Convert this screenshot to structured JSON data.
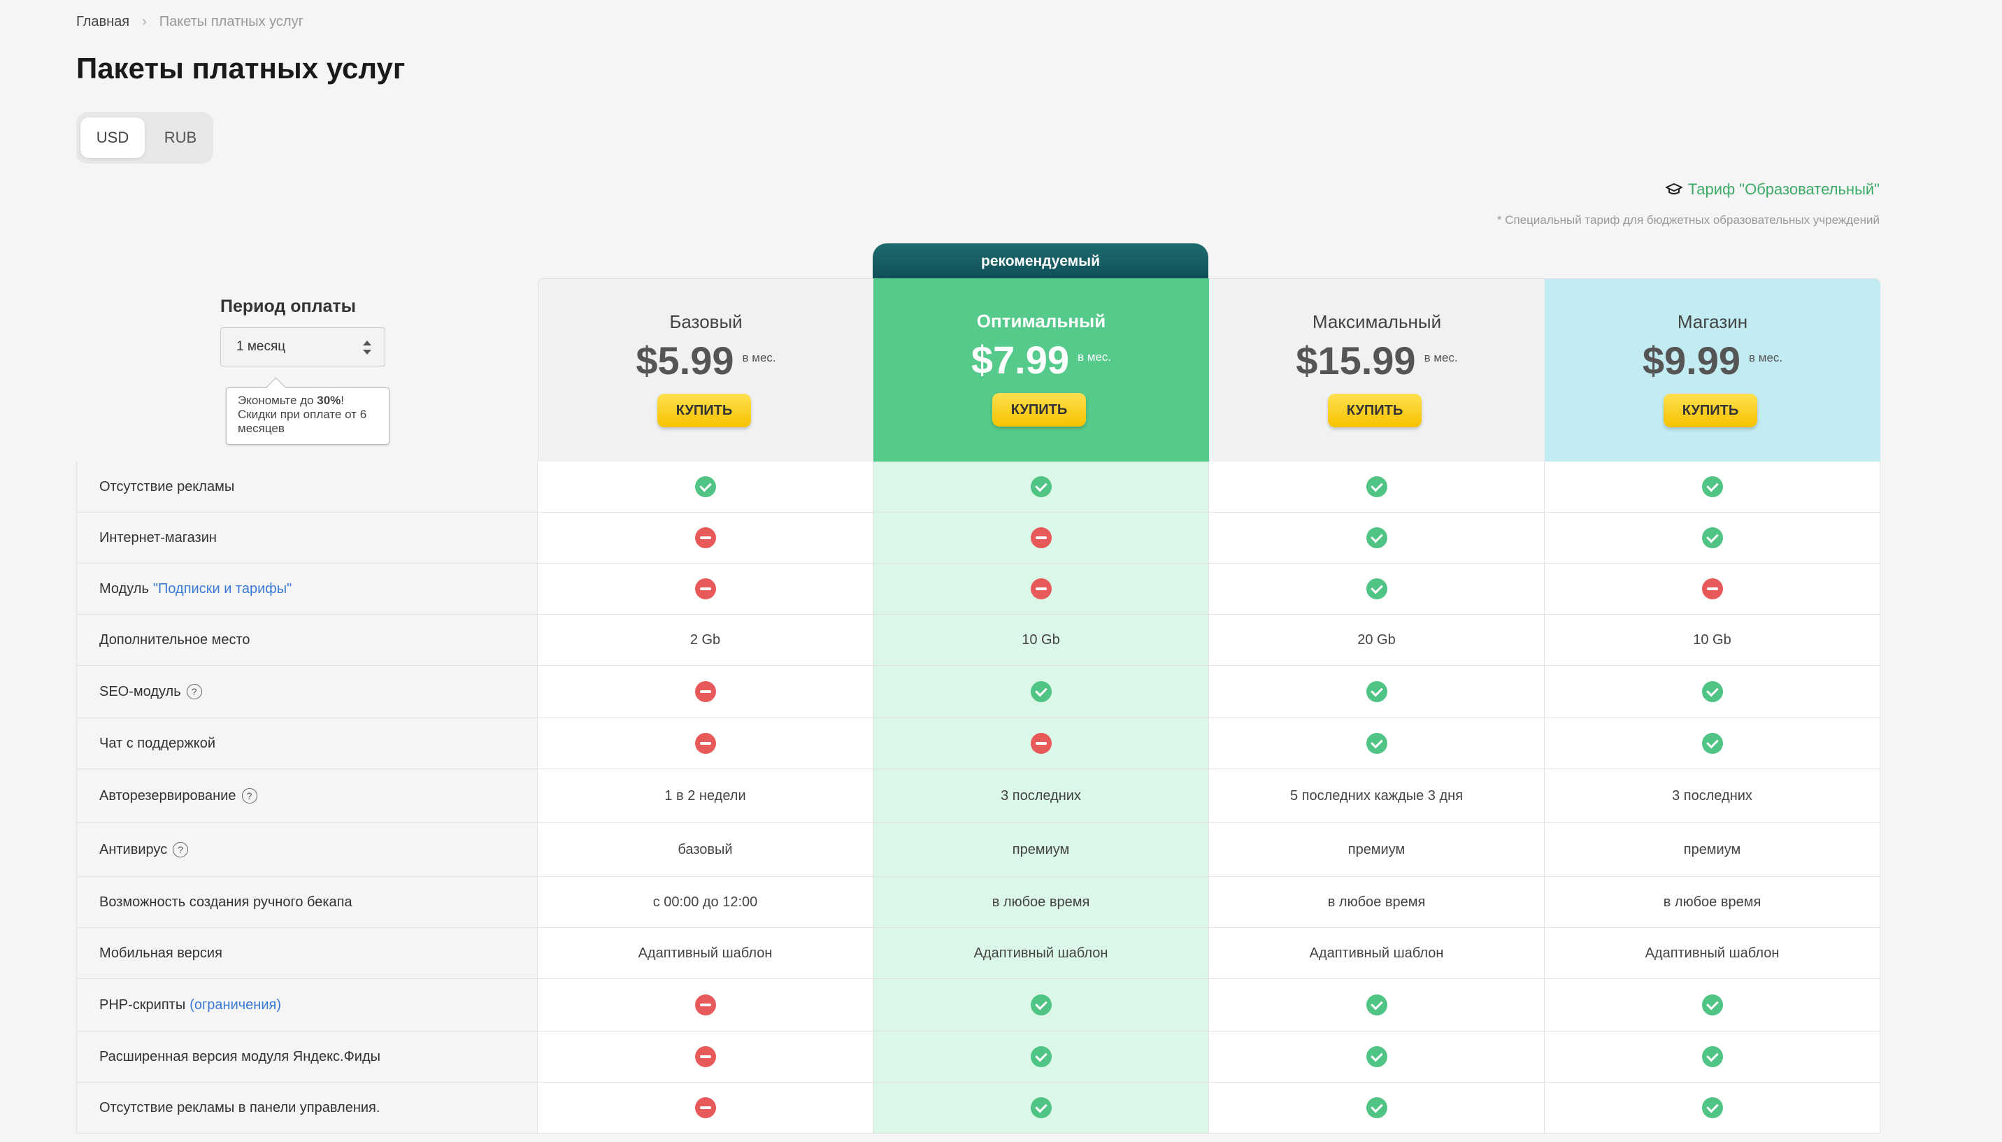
{
  "breadcrumb": {
    "home": "Главная",
    "current": "Пакеты платных услуг"
  },
  "title": "Пакеты платных услуг",
  "currency": {
    "usd": "USD",
    "rub": "RUB",
    "selected": "USD"
  },
  "edu": {
    "link": "Тариф \"Образовательный\"",
    "note": "* Специальный тариф для бюджетных образовательных учреждений"
  },
  "recommended_badge": "рекомендуемый",
  "period": {
    "label": "Период оплаты",
    "selected": "1 месяц",
    "tip_pre": "Экономьте до ",
    "tip_bold": "30%",
    "tip_post": "!",
    "tip_line2": "Скидки при оплате от 6 месяцев"
  },
  "plans": [
    {
      "name": "Базовый",
      "price": "$5.99",
      "per": "в мес.",
      "buy": "КУПИТЬ"
    },
    {
      "name": "Оптимальный",
      "price": "$7.99",
      "per": "в мес.",
      "buy": "КУПИТЬ"
    },
    {
      "name": "Максимальный",
      "price": "$15.99",
      "per": "в мес.",
      "buy": "КУПИТЬ"
    },
    {
      "name": "Магазин",
      "price": "$9.99",
      "per": "в мес.",
      "buy": "КУПИТЬ"
    }
  ],
  "features": [
    {
      "label": "Отсутствие рекламы",
      "values": [
        "yes",
        "yes",
        "yes",
        "yes"
      ]
    },
    {
      "label": "Интернет-магазин",
      "values": [
        "no",
        "no",
        "yes",
        "yes"
      ]
    },
    {
      "label": "Модуль",
      "link": "\"Подписки и тарифы\"",
      "values": [
        "no",
        "no",
        "yes",
        "no"
      ]
    },
    {
      "label": "Дополнительное место",
      "values": [
        "2 Gb",
        "10 Gb",
        "20 Gb",
        "10 Gb"
      ]
    },
    {
      "label": "SEO-модуль",
      "help": "?",
      "values": [
        "no",
        "yes",
        "yes",
        "yes"
      ]
    },
    {
      "label": "Чат с поддержкой",
      "values": [
        "no",
        "no",
        "yes",
        "yes"
      ]
    },
    {
      "label": "Авторезервирование",
      "help": "?",
      "values": [
        "1 в 2 недели",
        "3 последних",
        "5 последних каждые 3 дня",
        "3 последних"
      ]
    },
    {
      "label": "Антивирус",
      "help": "?",
      "values": [
        "базовый",
        "премиум",
        "премиум",
        "премиум"
      ]
    },
    {
      "label": "Возможность создания ручного бекапа",
      "values": [
        "с 00:00 до 12:00",
        "в любое время",
        "в любое время",
        "в любое время"
      ]
    },
    {
      "label": "Мобильная версия",
      "values": [
        "Адаптивный шаблон",
        "Адаптивный шаблон",
        "Адаптивный шаблон",
        "Адаптивный шаблон"
      ]
    },
    {
      "label": "PHP-скрипты",
      "link": "(ограничения)",
      "values": [
        "no",
        "yes",
        "yes",
        "yes"
      ]
    },
    {
      "label": "Расширенная версия модуля Яндекс.Фиды",
      "values": [
        "no",
        "yes",
        "yes",
        "yes"
      ]
    },
    {
      "label": "Отсутствие рекламы в панели управления.",
      "values": [
        "no",
        "yes",
        "yes",
        "yes"
      ]
    }
  ]
}
